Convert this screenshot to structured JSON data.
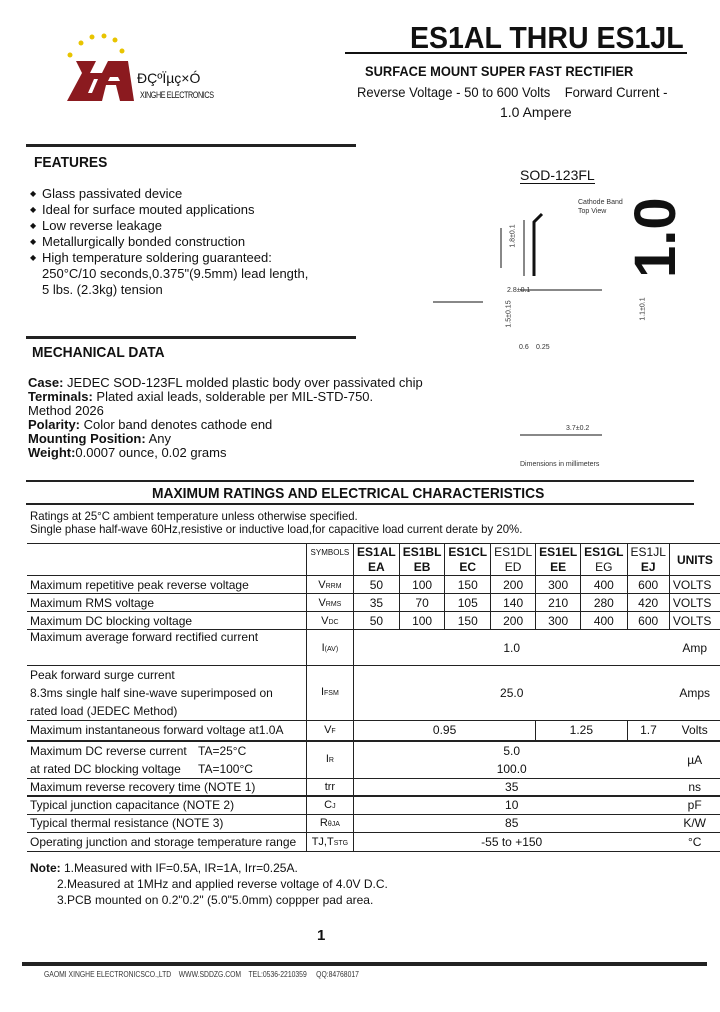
{
  "header": {
    "logo_text_cn": "ĐÇºÏµç×Ó",
    "logo_text_en": "XINGHE ELECTRONICS",
    "title": "ES1AL THRU ES1JL",
    "subtitle": "SURFACE MOUNT SUPER FAST RECTIFIER",
    "specs_line1": "Reverse Voltage - 50 to 600 Volts    Forward Current -",
    "specs_line2": "1.0 Ampere"
  },
  "features": {
    "heading": "FEATURES",
    "items": [
      "Glass passivated device",
      "Ideal for surface mouted applications",
      "Low reverse leakage",
      "Metallurgically bonded construction",
      "High temperature soldering guaranteed:"
    ],
    "continuation": [
      "250°C/10 seconds,0.375\"(9.5mm) lead length,",
      "5 lbs. (2.3kg) tension"
    ]
  },
  "package": {
    "name": "SOD-123FL",
    "big_label": "1.0",
    "cathode_label": "Cathode Band",
    "view_label": "Top View",
    "dims": [
      "1.8±0.1",
      "2.8±0.1",
      "1.5±0.15",
      "0.6",
      "0.25",
      "1.1±0.1",
      "3.7±0.2"
    ],
    "footnote": "Dimensions in millimeters"
  },
  "mechanical": {
    "heading": "MECHANICAL DATA",
    "rows": [
      {
        "label": "Case:",
        "text": " JEDEC SOD-123FL molded plastic body over passivated chip"
      },
      {
        "label": "Terminals:",
        "text": " Plated axial leads, solderable per MIL-STD-750."
      },
      {
        "label": "",
        "text": "Method 2026"
      },
      {
        "label": "Polarity:",
        "text": " Color band denotes cathode end"
      },
      {
        "label": "Mounting Position:",
        "text": " Any"
      },
      {
        "label": "Weight:",
        "text": "0.0007 ounce, 0.02 grams"
      }
    ]
  },
  "ratings": {
    "heading": "MAXIMUM RATINGS AND ELECTRICAL CHARACTERISTICS",
    "note1": "Ratings at 25°C ambient temperature unless otherwise specified.",
    "note2": "Single phase half-wave 60Hz,resistive or inductive load,for capacitive load current derate by 20%.",
    "symbols_header": "SYMBOLS",
    "parts": [
      [
        "ES1AL",
        "EA"
      ],
      [
        "ES1BL",
        "EB"
      ],
      [
        "ES1CL",
        "EC"
      ],
      [
        "ES1DL",
        "ED"
      ],
      [
        "ES1EL",
        "EE"
      ],
      [
        "ES1GL",
        "EG"
      ],
      [
        "ES1JL",
        "EJ"
      ]
    ],
    "units_header": "UNITS",
    "rows": [
      {
        "label": "Maximum repetitive peak reverse voltage",
        "sym": "V",
        "sub": "RRM",
        "vals": [
          "50",
          "100",
          "150",
          "200",
          "300",
          "400",
          "600"
        ],
        "unit": "VOLTS"
      },
      {
        "label": "Maximum RMS voltage",
        "sym": "V",
        "sub": "RMS",
        "vals": [
          "35",
          "70",
          "105",
          "140",
          "210",
          "280",
          "420"
        ],
        "unit": "VOLTS"
      },
      {
        "label": "Maximum DC blocking voltage",
        "sym": "V",
        "sub": "DC",
        "vals": [
          "50",
          "100",
          "150",
          "200",
          "300",
          "400",
          "600"
        ],
        "unit": "VOLTS"
      }
    ],
    "iav": {
      "label": "Maximum average forward rectified current",
      "sym": "I",
      "sub": "(AV)",
      "val": "1.0",
      "unit": "Amp"
    },
    "ifsm": {
      "label1": "Peak forward surge current",
      "label2": "8.3ms single half sine-wave superimposed on",
      "label3": "rated load (JEDEC Method)",
      "sym": "I",
      "sub": "FSM",
      "val": "25.0",
      "unit": "Amps"
    },
    "vf": {
      "label": "Maximum instantaneous forward voltage at1.0A",
      "sym": "V",
      "sub": "F",
      "vals": [
        "0.95",
        "1.25",
        "1.7"
      ],
      "unit": "Volts"
    },
    "ir": {
      "label1": "Maximum DC reverse current",
      "cond1": "TA=25°C",
      "label2": "at rated DC blocking voltage",
      "cond2": "TA=100°C",
      "sym": "I",
      "sub": "R",
      "val1": "5.0",
      "val2": "100.0",
      "unit": "µA"
    },
    "trr": {
      "label": "Maximum reverse recovery time   (NOTE 1)",
      "sym": "trr",
      "val": "35",
      "unit": "ns"
    },
    "cj": {
      "label": "Typical junction capacitance   (NOTE 2)",
      "sym": "C",
      "sub": "J",
      "val": "10",
      "unit": "pF"
    },
    "rth": {
      "label": "Typical thermal resistance (NOTE 3)",
      "sym": "R",
      "sub": "θJA",
      "val": "85",
      "unit": "K/W"
    },
    "temp": {
      "label": "Operating junction and storage temperature range",
      "sym": "TJ,T",
      "sub": "STG",
      "val": "-55 to +150",
      "unit": "°C"
    }
  },
  "notes": {
    "title": "Note:",
    "items": [
      " 1.Measured with IF=0.5A, IR=1A, Irr=0.25A.",
      "2.Measured at 1MHz and applied reverse voltage of 4.0V D.C.",
      "3.PCB mounted on 0.2\"0.2\" (5.0\"5.0mm) coppper pad area."
    ]
  },
  "page_number": "1",
  "footer": "GAOMI XINGHE ELECTRONICSCO.,LTD    WWW.SDDZG.COM    TEL:0536-2210359     QQ:84768017"
}
